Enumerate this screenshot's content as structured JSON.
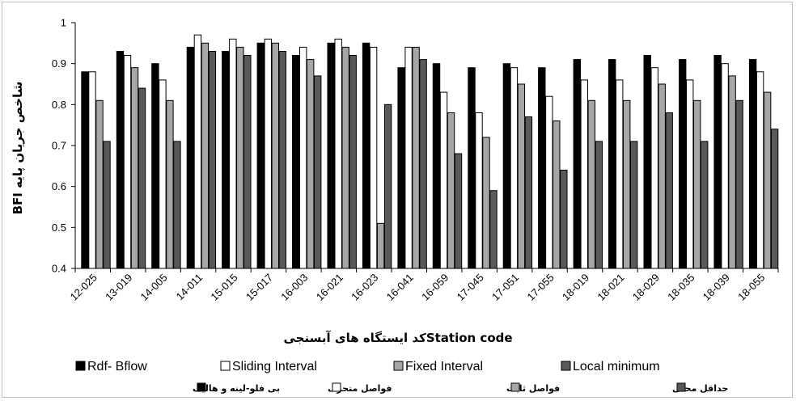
{
  "chart_data": {
    "type": "bar",
    "xlabel": "کد ایستگاه های آبسنجیStation code",
    "ylabel": "شاخص جریان پایه BFI",
    "ylim": [
      0.4,
      1.0
    ],
    "yticks": [
      "0.4",
      "0.5",
      "0.6",
      "0.7",
      "0.8",
      "0.9",
      "1"
    ],
    "grid": false,
    "legend_position": "bottom",
    "categories": [
      "12-025",
      "13-019",
      "14-005",
      "14-011",
      "15-015",
      "15-017",
      "16-003",
      "16-021",
      "16-023",
      "16-041",
      "16-059",
      "17-045",
      "17-051",
      "17-055",
      "18-019",
      "18-021",
      "18-029",
      "18-035",
      "18-039",
      "18-055"
    ],
    "series": [
      {
        "name": "Rdf- Bflow",
        "name_fa": "بی فلو-لینه و هالیک",
        "color": "#000000",
        "values": [
          0.88,
          0.93,
          0.9,
          0.94,
          0.93,
          0.95,
          0.92,
          0.95,
          0.95,
          0.89,
          0.9,
          0.89,
          0.9,
          0.89,
          0.91,
          0.91,
          0.92,
          0.91,
          0.92,
          0.91
        ]
      },
      {
        "name": "Sliding Interval",
        "name_fa": "فواصل متحرک",
        "color": "#ffffff",
        "values": [
          0.88,
          0.92,
          0.86,
          0.97,
          0.96,
          0.96,
          0.94,
          0.96,
          0.94,
          0.94,
          0.83,
          0.78,
          0.89,
          0.82,
          0.86,
          0.86,
          0.89,
          0.86,
          0.9,
          0.88
        ]
      },
      {
        "name": "Fixed Interval",
        "name_fa": "فواصل ثابت",
        "color": "#a6a6a6",
        "values": [
          0.81,
          0.89,
          0.81,
          0.95,
          0.94,
          0.95,
          0.91,
          0.94,
          0.51,
          0.94,
          0.78,
          0.72,
          0.85,
          0.76,
          0.81,
          0.81,
          0.85,
          0.81,
          0.87,
          0.83
        ]
      },
      {
        "name": "Local minimum",
        "name_fa": "حداقل محلی",
        "color": "#595959",
        "values": [
          0.71,
          0.84,
          0.71,
          0.93,
          0.92,
          0.93,
          0.87,
          0.92,
          0.8,
          0.91,
          0.68,
          0.59,
          0.77,
          0.64,
          0.71,
          0.71,
          0.78,
          0.71,
          0.81,
          0.74
        ]
      }
    ]
  }
}
